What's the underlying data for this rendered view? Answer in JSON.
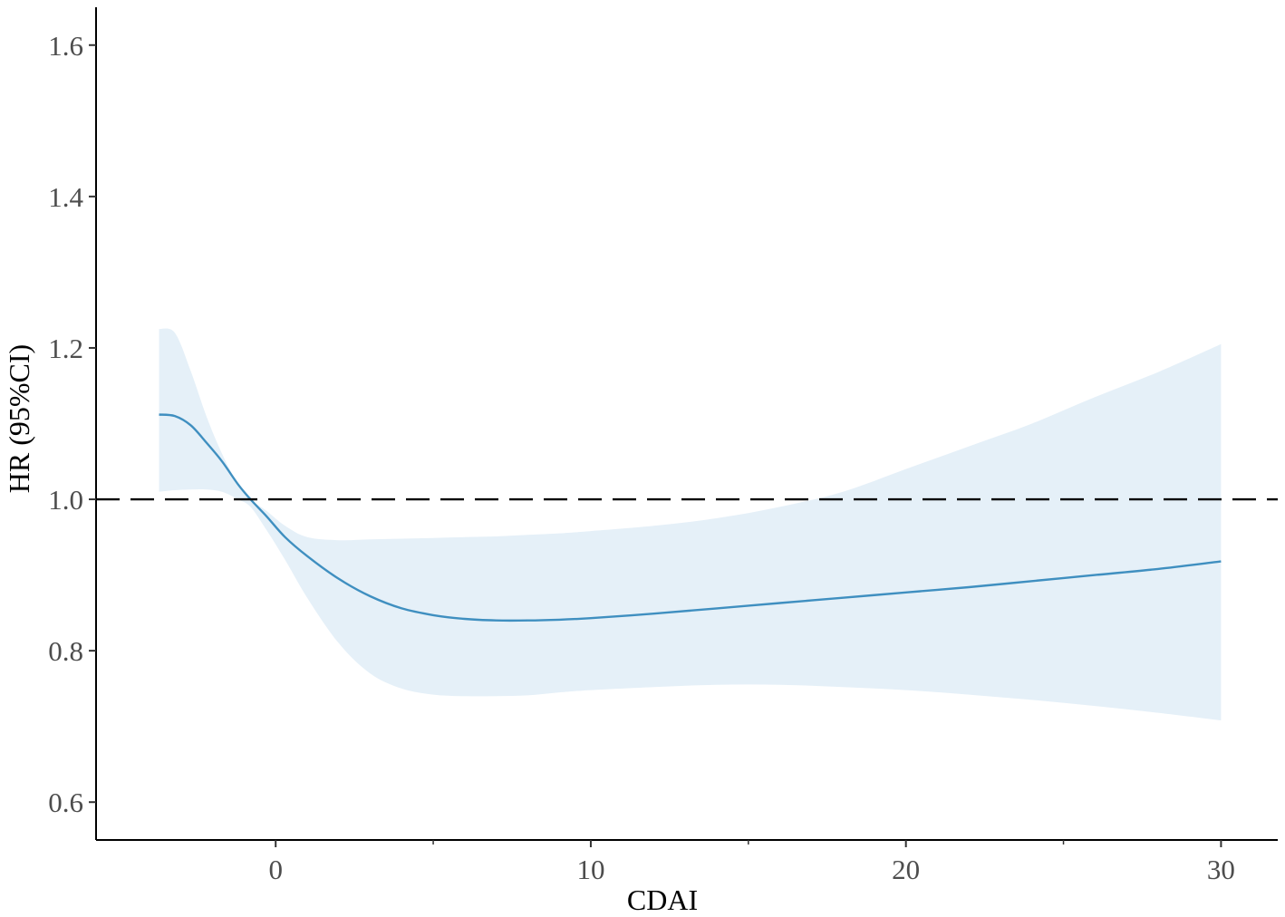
{
  "chart_data": {
    "type": "line",
    "title": "",
    "xlabel": "CDAI",
    "ylabel": "HR (95%CI)",
    "xlim": [
      -5.7,
      31.8
    ],
    "ylim": [
      0.55,
      1.65
    ],
    "x_ticks": [
      0,
      10,
      20,
      30
    ],
    "x_minor_ticks": [
      5,
      15,
      25
    ],
    "y_ticks": [
      0.6,
      0.8,
      1.0,
      1.2,
      1.4,
      1.6
    ],
    "y_tick_labels": [
      "0.6",
      "0.8",
      "1.0",
      "1.2",
      "1.4",
      "1.6"
    ],
    "reference_line": {
      "y": 1.0,
      "style": "dashed",
      "color": "#000000"
    },
    "grid": false,
    "legend": "none",
    "colors": {
      "line": "#3f8fc0",
      "band": "#e5f0f8"
    },
    "series": [
      {
        "x": [
          -3.7,
          -3.2,
          -2.7,
          -2.2,
          -1.7,
          -1.2,
          -0.8,
          -0.3,
          0.3,
          1.0,
          2.0,
          3.0,
          4.0,
          5.0,
          6.0,
          7.0,
          8.0,
          9.0,
          10.0,
          12.0,
          14.0,
          16.0,
          18.0,
          20.0,
          22.0,
          24.0,
          26.0,
          28.0,
          30.0
        ],
        "hr": [
          1.112,
          1.11,
          1.098,
          1.075,
          1.05,
          1.02,
          1.0,
          0.978,
          0.95,
          0.925,
          0.895,
          0.872,
          0.856,
          0.847,
          0.842,
          0.84,
          0.84,
          0.841,
          0.843,
          0.849,
          0.856,
          0.863,
          0.87,
          0.877,
          0.884,
          0.892,
          0.9,
          0.908,
          0.918
        ],
        "lower": [
          1.01,
          1.012,
          1.013,
          1.013,
          1.01,
          1.0,
          0.99,
          0.96,
          0.92,
          0.87,
          0.81,
          0.77,
          0.75,
          0.742,
          0.74,
          0.74,
          0.741,
          0.745,
          0.748,
          0.752,
          0.755,
          0.755,
          0.752,
          0.748,
          0.742,
          0.735,
          0.727,
          0.718,
          0.708
        ],
        "upper": [
          1.225,
          1.22,
          1.17,
          1.11,
          1.06,
          1.02,
          1.0,
          0.985,
          0.965,
          0.95,
          0.946,
          0.947,
          0.948,
          0.949,
          0.95,
          0.951,
          0.953,
          0.955,
          0.958,
          0.965,
          0.975,
          0.99,
          1.01,
          1.04,
          1.07,
          1.1,
          1.135,
          1.168,
          1.205
        ]
      }
    ]
  }
}
